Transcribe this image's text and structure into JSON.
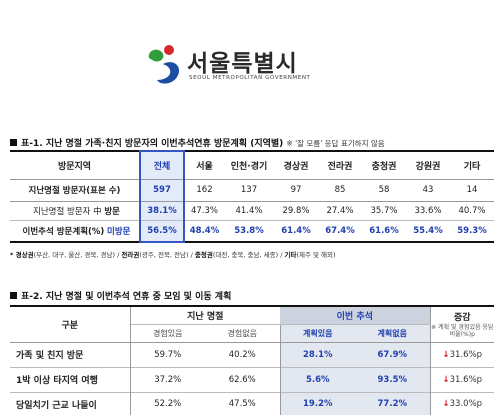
{
  "logo": {
    "name": "서울특별시",
    "sub": "SEOUL METROPOLITAN GOVERNMENT",
    "colors": {
      "green": "#2f9d3a",
      "blue": "#1c4fa3",
      "red": "#d6282b"
    }
  },
  "table1": {
    "title": "표-1. 지난 명절 가족·친지 방문자의 이번추석연휴 방문계획 (지역별)",
    "note": "※ '잘 모름' 응답 표기하지 않음",
    "header": {
      "region_label": "방문지역",
      "columns": [
        "전체",
        "서울",
        "인천·경기",
        "경상권",
        "전라권",
        "충청권",
        "강원권",
        "기타"
      ]
    },
    "sample_row": {
      "label": "지난명절 방문자(표본 수)",
      "values": [
        "597",
        "162",
        "137",
        "97",
        "85",
        "58",
        "43",
        "14"
      ]
    },
    "visit_row": {
      "label": "지난명절 방문자 中",
      "sub_label": "방문",
      "values": [
        "38.1%",
        "47.3%",
        "41.4%",
        "29.8%",
        "27.4%",
        "35.7%",
        "33.6%",
        "40.7%"
      ]
    },
    "plan_row": {
      "label": "이번추석 방문계획(%)",
      "sub_label": "미방문",
      "values": [
        "56.5%",
        "48.4%",
        "53.8%",
        "61.4%",
        "67.4%",
        "61.6%",
        "55.4%",
        "59.3%"
      ]
    },
    "legend": [
      {
        "term": "* 경상권",
        "desc": "(부산, 대구, 울산, 경북, 경남) /"
      },
      {
        "term": "전라권",
        "desc": "(광주, 전북, 전남) /"
      },
      {
        "term": "충청권",
        "desc": "(대전, 충북, 충남, 세종) /"
      },
      {
        "term": "기타",
        "desc": "(제주 및 해외)"
      }
    ]
  },
  "table2": {
    "title": "표-2. 지난 명절 및 이번추석 연휴 중 모임 및 이동 계획",
    "header": {
      "gubun": "구분",
      "past_group": "지난 명절",
      "current_group": "이번 추석",
      "change": "증감",
      "change_note": "※ 계획 및 경험있음 응답비율(%)p",
      "past_sub": [
        "경험있음",
        "경험없음"
      ],
      "current_sub": [
        "계획있음",
        "계획없음"
      ]
    },
    "rows": [
      {
        "label": "가족 및 친지 방문",
        "past_yes": "59.7%",
        "past_no": "40.2%",
        "cur_yes": "28.1%",
        "cur_no": "67.9%",
        "arrow": "↓",
        "change": "31.6%p"
      },
      {
        "label": "1박 이상 타지역 여행",
        "past_yes": "37.2%",
        "past_no": "62.6%",
        "cur_yes": "5.6%",
        "cur_no": "93.5%",
        "arrow": "↓",
        "change": "31.6%p"
      },
      {
        "label": "당일치기 근교 나들이",
        "past_yes": "52.2%",
        "past_no": "47.5%",
        "cur_yes": "19.2%",
        "cur_no": "77.2%",
        "arrow": "↓",
        "change": "33.0%p"
      }
    ]
  }
}
